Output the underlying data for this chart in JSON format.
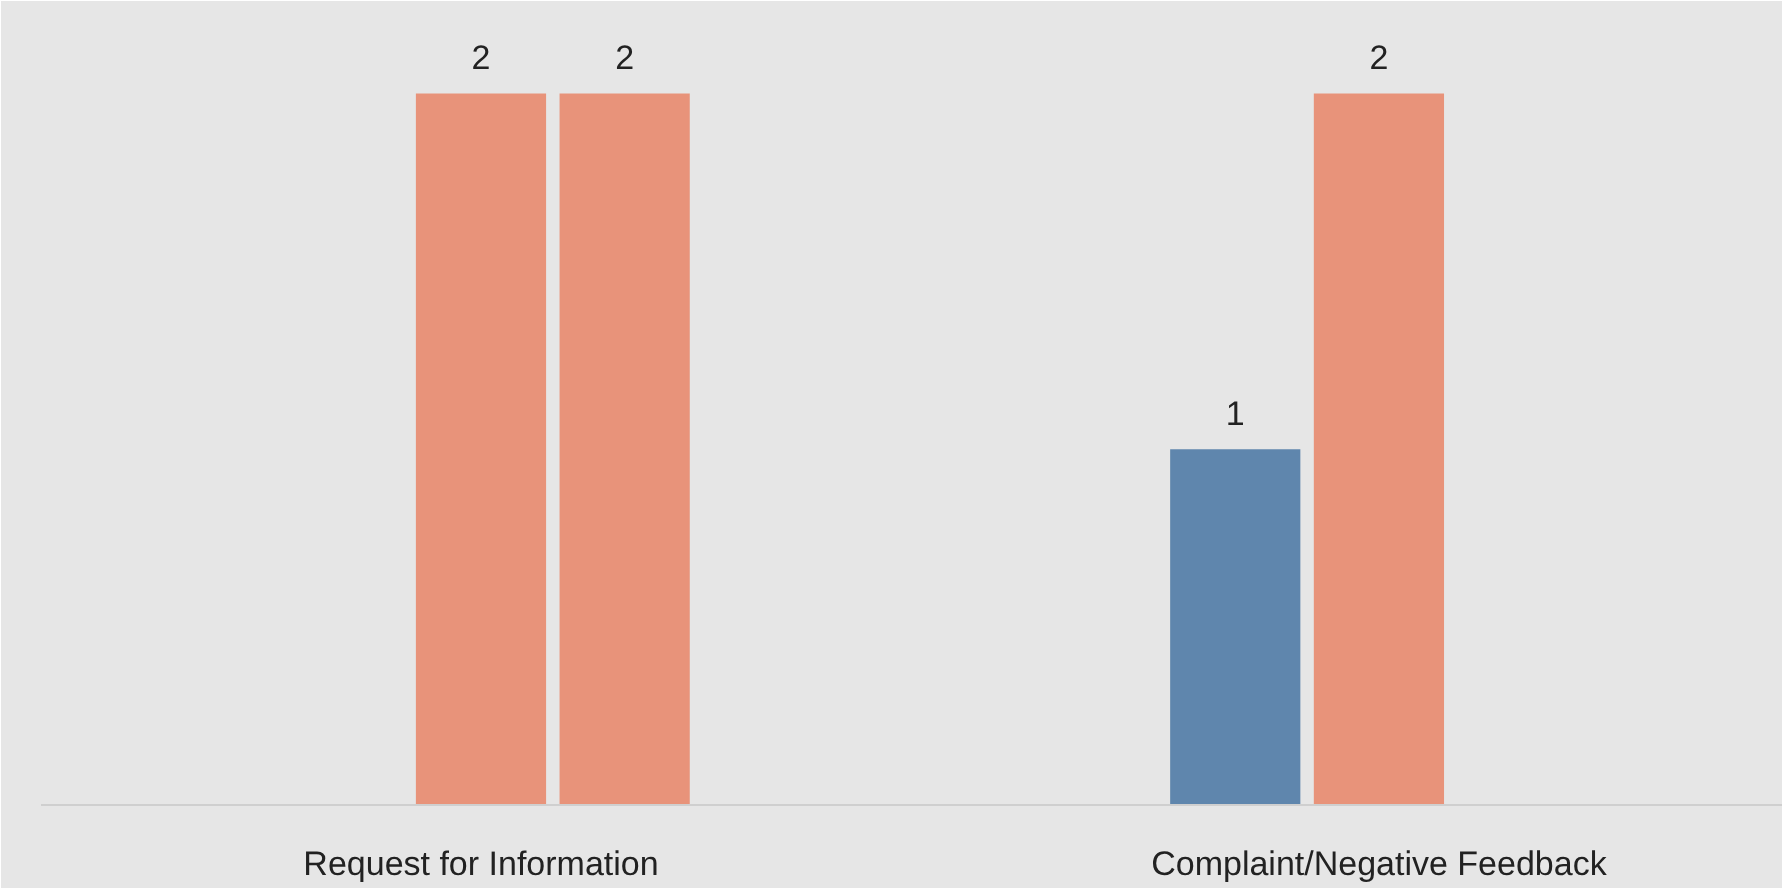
{
  "chart_data": {
    "type": "bar",
    "categories": [
      "Request for Information",
      "Complaint/Negative Feedback"
    ],
    "series": [
      {
        "color": "#5f86ad",
        "values": [
          null,
          1
        ]
      },
      {
        "color": "#e8937a",
        "values": [
          2,
          2
        ]
      },
      {
        "color": "#e8937a",
        "values": [
          2,
          null
        ]
      }
    ],
    "data_labels": true
  }
}
